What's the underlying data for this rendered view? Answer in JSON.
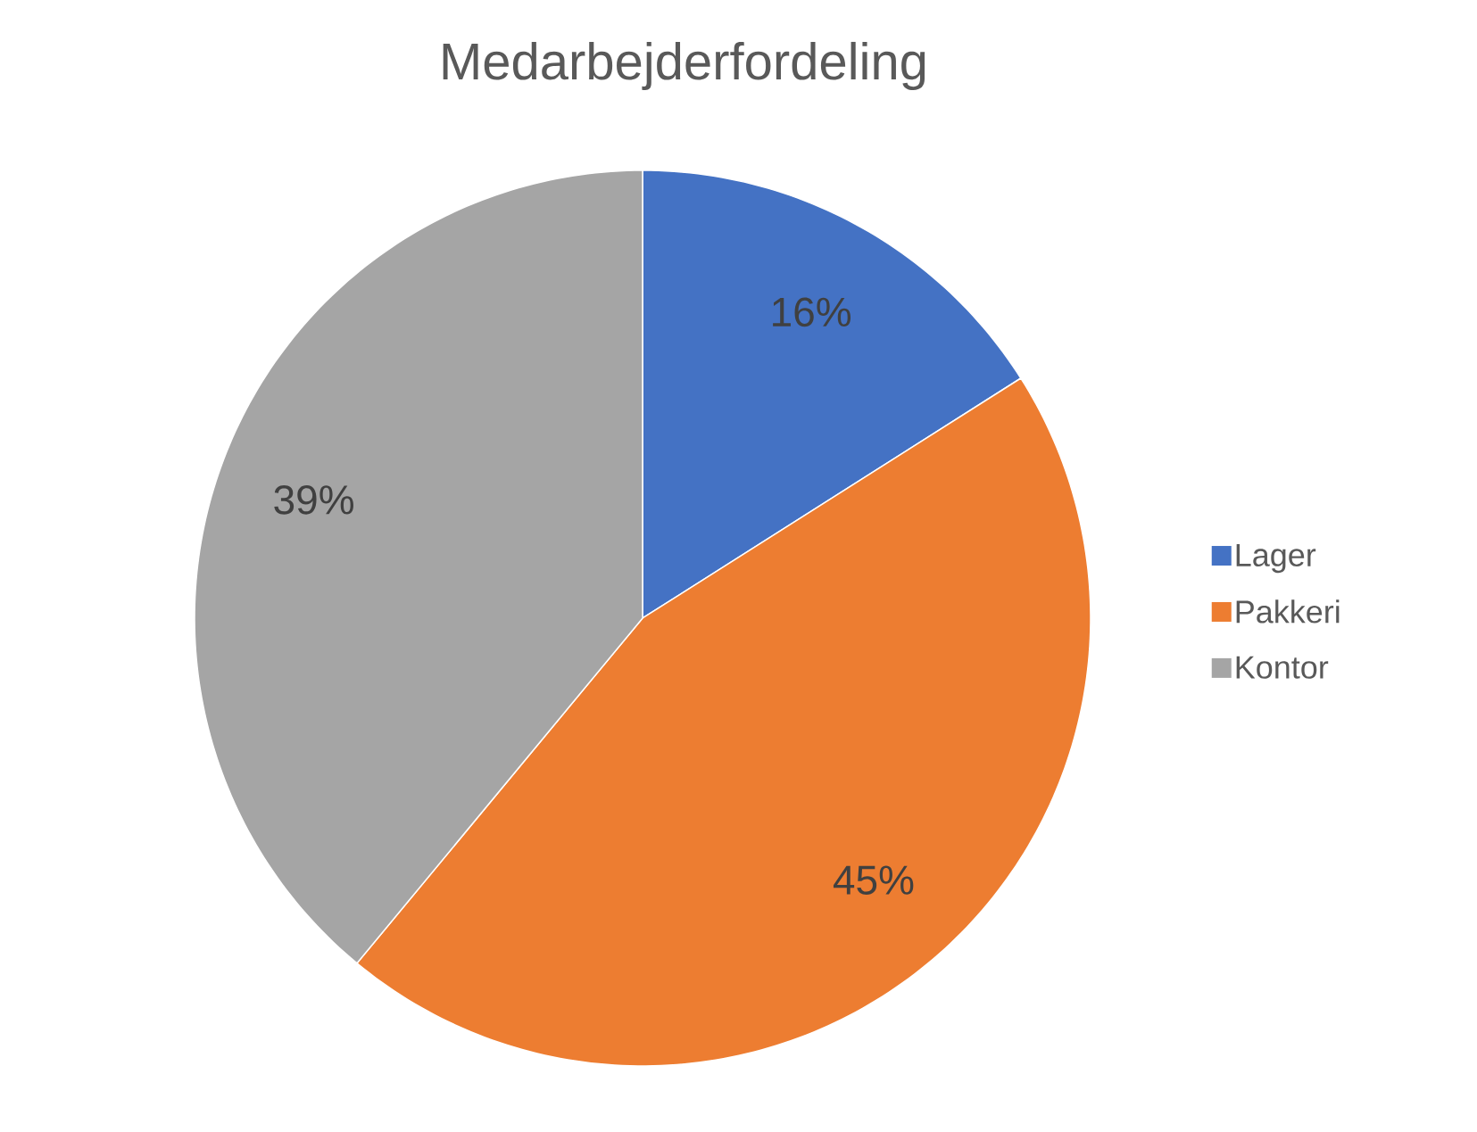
{
  "chart_data": {
    "type": "pie",
    "title": "Medarbejderfordeling",
    "categories": [
      "Lager",
      "Pakkeri",
      "Kontor"
    ],
    "values": [
      16,
      45,
      39
    ],
    "colors": [
      "#4472c4",
      "#ed7d31",
      "#a5a5a5"
    ],
    "value_labels": [
      "16%",
      "45%",
      "39%"
    ],
    "legend": "right"
  }
}
